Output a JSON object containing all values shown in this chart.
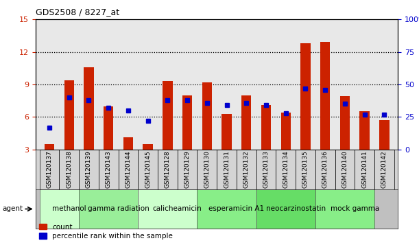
{
  "title": "GDS2508 / 8227_at",
  "samples": [
    "GSM120137",
    "GSM120138",
    "GSM120139",
    "GSM120143",
    "GSM120144",
    "GSM120145",
    "GSM120128",
    "GSM120129",
    "GSM120130",
    "GSM120131",
    "GSM120132",
    "GSM120133",
    "GSM120134",
    "GSM120135",
    "GSM120136",
    "GSM120140",
    "GSM120141",
    "GSM120142"
  ],
  "count_values": [
    3.5,
    9.4,
    10.6,
    7.0,
    4.1,
    3.5,
    9.3,
    8.0,
    9.2,
    6.3,
    8.0,
    7.1,
    6.4,
    12.8,
    12.9,
    7.9,
    6.5,
    5.7
  ],
  "percentile_values": [
    17,
    40,
    38,
    32,
    30,
    22,
    38,
    38,
    36,
    34,
    36,
    34,
    28,
    47,
    46,
    35,
    27,
    27
  ],
  "bar_color": "#cc2200",
  "dot_color": "#0000cc",
  "agent_groups": [
    {
      "label": "methanol",
      "start": 0,
      "end": 2,
      "color": "#ccffcc"
    },
    {
      "label": "gamma radiation",
      "start": 2,
      "end": 5,
      "color": "#99ee99"
    },
    {
      "label": "calicheamicin",
      "start": 5,
      "end": 8,
      "color": "#ccffcc"
    },
    {
      "label": "esperamicin A1",
      "start": 8,
      "end": 11,
      "color": "#88ee88"
    },
    {
      "label": "neocarzinostatin",
      "start": 11,
      "end": 14,
      "color": "#66dd66"
    },
    {
      "label": "mock gamma",
      "start": 14,
      "end": 17,
      "color": "#88ee88"
    }
  ],
  "ylim_left": [
    3,
    15
  ],
  "ylim_right": [
    0,
    100
  ],
  "yticks_left": [
    3,
    6,
    9,
    12,
    15
  ],
  "yticks_right": [
    0,
    25,
    50,
    75,
    100
  ],
  "bar_color_red": "#cc2200",
  "dot_color_blue": "#0000cc",
  "plot_bg": "#e8e8e8",
  "sample_bg": "#d4d4d4",
  "agent_bg": "#c0c0c0"
}
